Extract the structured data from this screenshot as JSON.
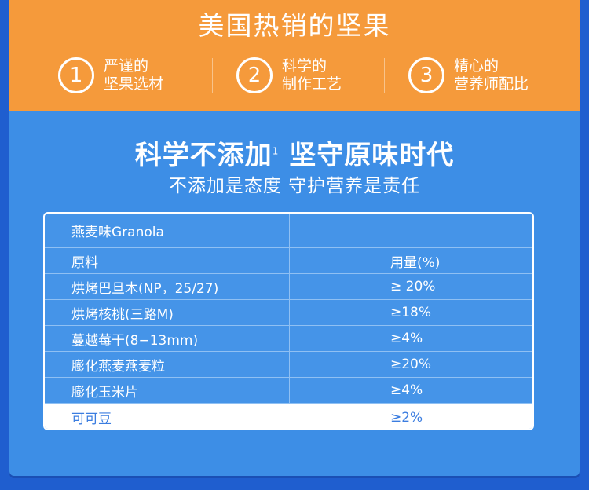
{
  "header": {
    "title": "美国热销的坚果"
  },
  "features": [
    {
      "num": "1",
      "line1": "严谨的",
      "line2": "坚果选材"
    },
    {
      "num": "2",
      "line1": "科学的",
      "line2": "制作工艺"
    },
    {
      "num": "3",
      "line1": "精心的",
      "line2": "营养师配比"
    }
  ],
  "headline": {
    "text": "科学不添加",
    "sup": "1",
    "text2": " 坚守原味时代"
  },
  "subline": "不添加是态度 守护营养是责任",
  "table": {
    "title": "燕麦味Granola",
    "header": {
      "c1": "原料",
      "c2": "用量(%)"
    },
    "rows": [
      {
        "c1": "烘烤巴旦木(NP，25/27)",
        "c2": "≥ 20%"
      },
      {
        "c1": "烘烤核桃(三路M)",
        "c2": "≥18%"
      },
      {
        "c1": "蔓越莓干(8−13mm)",
        "c2": "≥4%"
      },
      {
        "c1": "膨化燕麦燕麦粒",
        "c2": "≥20%"
      },
      {
        "c1": "膨化玉米片",
        "c2": "≥4%"
      },
      {
        "c1": "可可豆",
        "c2": "≥2%"
      }
    ]
  },
  "colors": {
    "orange": "#f59a3b",
    "blue": "#3d8ee6",
    "dark_blue": "#1f5ecf"
  }
}
